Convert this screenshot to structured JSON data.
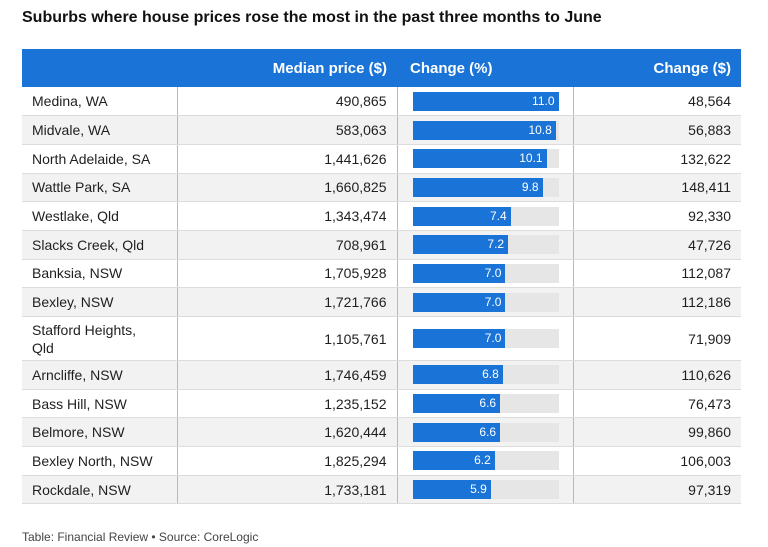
{
  "title": "Suburbs where house prices rose the most in the past three months to June",
  "footer": "Table: Financial Review • Source: CoreLogic",
  "colors": {
    "header": "#1a73d6",
    "bar": "#1a73d6",
    "track": "#e6e6e6"
  },
  "chart_data": {
    "type": "table",
    "columns": [
      "",
      "Median price ($)",
      "Change (%)",
      "Change ($)"
    ],
    "bar_max": 11.0,
    "rows": [
      {
        "suburb": "Medina, WA",
        "median": "490,865",
        "change_pct": 11.0,
        "change_pct_label": "11.0",
        "change_abs": "48,564"
      },
      {
        "suburb": "Midvale, WA",
        "median": "583,063",
        "change_pct": 10.8,
        "change_pct_label": "10.8",
        "change_abs": "56,883"
      },
      {
        "suburb": "North Adelaide, SA",
        "median": "1,441,626",
        "change_pct": 10.1,
        "change_pct_label": "10.1",
        "change_abs": "132,622"
      },
      {
        "suburb": "Wattle Park, SA",
        "median": "1,660,825",
        "change_pct": 9.8,
        "change_pct_label": "9.8",
        "change_abs": "148,411"
      },
      {
        "suburb": "Westlake, Qld",
        "median": "1,343,474",
        "change_pct": 7.4,
        "change_pct_label": "7.4",
        "change_abs": "92,330"
      },
      {
        "suburb": "Slacks Creek, Qld",
        "median": "708,961",
        "change_pct": 7.2,
        "change_pct_label": "7.2",
        "change_abs": "47,726"
      },
      {
        "suburb": "Banksia, NSW",
        "median": "1,705,928",
        "change_pct": 7.0,
        "change_pct_label": "7.0",
        "change_abs": "112,087"
      },
      {
        "suburb": "Bexley, NSW",
        "median": "1,721,766",
        "change_pct": 7.0,
        "change_pct_label": "7.0",
        "change_abs": "112,186"
      },
      {
        "suburb": "Stafford Heights, Qld",
        "median": "1,105,761",
        "change_pct": 7.0,
        "change_pct_label": "7.0",
        "change_abs": "71,909"
      },
      {
        "suburb": "Arncliffe, NSW",
        "median": "1,746,459",
        "change_pct": 6.8,
        "change_pct_label": "6.8",
        "change_abs": "110,626"
      },
      {
        "suburb": "Bass Hill, NSW",
        "median": "1,235,152",
        "change_pct": 6.6,
        "change_pct_label": "6.6",
        "change_abs": "76,473"
      },
      {
        "suburb": "Belmore, NSW",
        "median": "1,620,444",
        "change_pct": 6.6,
        "change_pct_label": "6.6",
        "change_abs": "99,860"
      },
      {
        "suburb": "Bexley North, NSW",
        "median": "1,825,294",
        "change_pct": 6.2,
        "change_pct_label": "6.2",
        "change_abs": "106,003"
      },
      {
        "suburb": "Rockdale, NSW",
        "median": "1,733,181",
        "change_pct": 5.9,
        "change_pct_label": "5.9",
        "change_abs": "97,319"
      }
    ]
  }
}
